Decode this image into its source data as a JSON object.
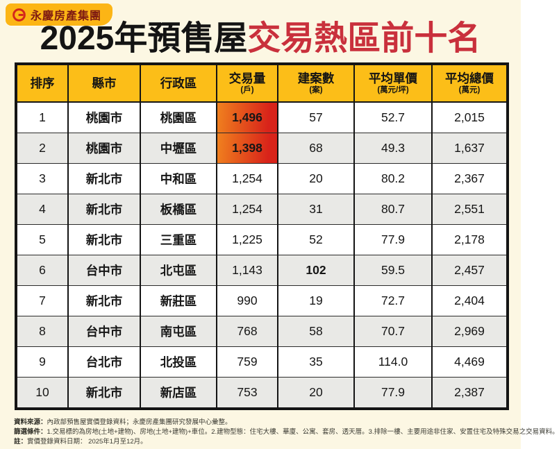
{
  "brand": {
    "name": "永慶房產集團"
  },
  "title": {
    "black": "2025年預售屋",
    "red": "交易熱區前十名"
  },
  "table": {
    "headers": [
      {
        "label": "排序",
        "sub": ""
      },
      {
        "label": "縣市",
        "sub": ""
      },
      {
        "label": "行政區",
        "sub": ""
      },
      {
        "label": "交易量",
        "sub": "(戶)"
      },
      {
        "label": "建案數",
        "sub": "(案)"
      },
      {
        "label": "平均單價",
        "sub": "(萬元/坪)"
      },
      {
        "label": "平均總價",
        "sub": "(萬元)"
      }
    ]
  },
  "chart_data": {
    "type": "table",
    "title": "2025年預售屋交易熱區前十名",
    "columns": [
      "排序",
      "縣市",
      "行政區",
      "交易量(戶)",
      "建案數(案)",
      "平均單價(萬元/坪)",
      "平均總價(萬元)"
    ],
    "rows": [
      [
        "1",
        "桃園市",
        "桃園區",
        "1,496",
        "57",
        "52.7",
        "2,015"
      ],
      [
        "2",
        "桃園市",
        "中壢區",
        "1,398",
        "68",
        "49.3",
        "1,637"
      ],
      [
        "3",
        "新北市",
        "中和區",
        "1,254",
        "20",
        "80.2",
        "2,367"
      ],
      [
        "4",
        "新北市",
        "板橋區",
        "1,254",
        "31",
        "80.7",
        "2,551"
      ],
      [
        "5",
        "新北市",
        "三重區",
        "1,225",
        "52",
        "77.9",
        "2,178"
      ],
      [
        "6",
        "台中市",
        "北屯區",
        "1,143",
        "102",
        "59.5",
        "2,457"
      ],
      [
        "7",
        "新北市",
        "新莊區",
        "990",
        "19",
        "72.7",
        "2,404"
      ],
      [
        "8",
        "台中市",
        "南屯區",
        "768",
        "58",
        "70.7",
        "2,969"
      ],
      [
        "9",
        "台北市",
        "北投區",
        "759",
        "35",
        "114.0",
        "4,469"
      ],
      [
        "10",
        "新北市",
        "新店區",
        "753",
        "20",
        "77.9",
        "2,387"
      ]
    ],
    "highlights": {
      "volume_gradient_rows": [
        0,
        1
      ],
      "red_text_cells": [
        {
          "row": 5,
          "col": 4
        }
      ]
    }
  },
  "footnotes": [
    {
      "label": "資料來源：",
      "text": "內政部預售屋實價登錄資料；永慶房產集團研究發展中心彙整。"
    },
    {
      "label": "篩選條件：",
      "text": "1.交易標的為房地(土地+建物)、房地(土地+建物)+車位。2.建物型態：住宅大樓、華廈、公寓、套房、透天厝。3.排除一樓、主要用途非住家、安置住宅及特殊交易之交易資料。"
    },
    {
      "label": "註：",
      "text": "實價登錄資料日期： 2025年1月至12月。"
    }
  ],
  "colors": {
    "background": "#FCF7E3",
    "header_gold": "#FCBE18",
    "badge_gold": "#FCB515",
    "title_red": "#C9303C",
    "gradient_orange": "#F0811E",
    "gradient_red": "#D8231A",
    "red_number": "#D2302C",
    "alt_row": "#E9E9E6"
  }
}
